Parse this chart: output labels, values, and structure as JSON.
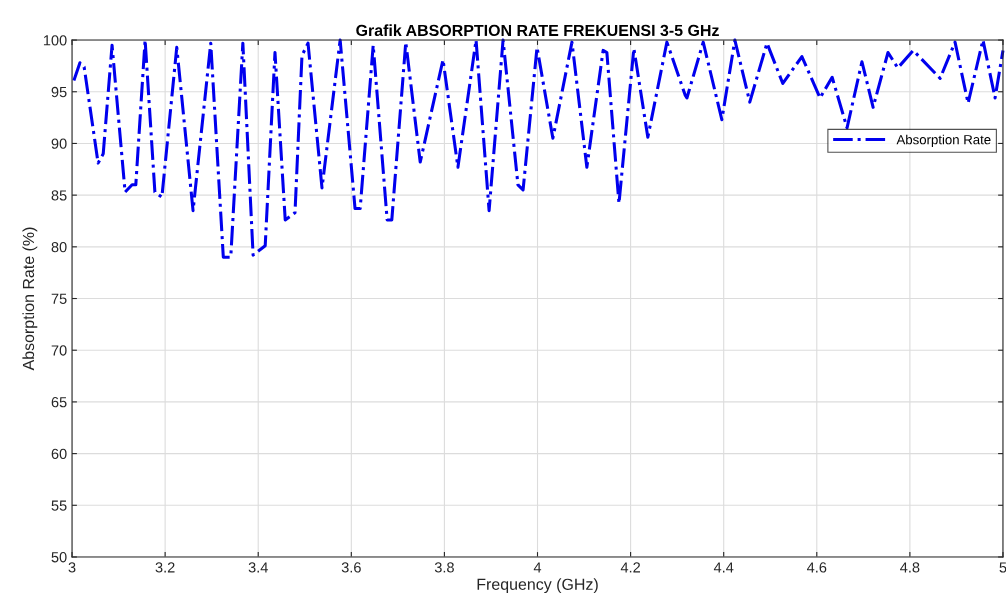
{
  "chart_data": {
    "type": "line",
    "title": "Grafik ABSORPTION RATE FREKUENSI 3-5 GHz",
    "xlabel": "Frequency (GHz)",
    "ylabel": "Absorption Rate (%)",
    "xlim": [
      3,
      5
    ],
    "ylim": [
      50,
      100
    ],
    "xticks": [
      3,
      3.2,
      3.4,
      3.6,
      3.8,
      4,
      4.2,
      4.4,
      4.6,
      4.8,
      5
    ],
    "yticks": [
      50,
      55,
      60,
      65,
      70,
      75,
      80,
      85,
      90,
      95,
      100
    ],
    "grid": true,
    "legend": "top right",
    "line_style": "dashdot",
    "marker": "none",
    "series": [
      {
        "name": "Absorption Rate",
        "color": "#0000ee",
        "x": [
          3.004,
          3.017,
          3.026,
          3.056,
          3.067,
          3.086,
          3.114,
          3.129,
          3.137,
          3.157,
          3.178,
          3.193,
          3.225,
          3.26,
          3.298,
          3.325,
          3.341,
          3.367,
          3.389,
          3.415,
          3.436,
          3.458,
          3.479,
          3.494,
          3.507,
          3.537,
          3.576,
          3.608,
          3.619,
          3.647,
          3.677,
          3.687,
          3.717,
          3.748,
          3.797,
          3.829,
          3.868,
          3.896,
          3.926,
          3.958,
          3.969,
          3.999,
          4.033,
          4.074,
          4.106,
          4.141,
          4.149,
          4.175,
          4.207,
          4.237,
          4.278,
          4.317,
          4.321,
          4.356,
          4.396,
          4.424,
          4.456,
          4.493,
          4.527,
          4.568,
          4.607,
          4.633,
          4.665,
          4.697,
          4.721,
          4.753,
          4.774,
          4.807,
          4.865,
          4.897,
          4.925,
          4.957,
          4.983,
          5.0
        ],
        "values": [
          96.1,
          97.8,
          97.4,
          88.1,
          89,
          99.5,
          85.3,
          86,
          86,
          100,
          85.3,
          84.8,
          99.3,
          83.5,
          99.7,
          79,
          79,
          99.7,
          79.2,
          80.1,
          98.8,
          82.6,
          83.3,
          98.5,
          99.7,
          85.7,
          100,
          83.7,
          83.7,
          99.5,
          82.6,
          82.6,
          99.8,
          88.2,
          98.1,
          87.7,
          100,
          83.5,
          100,
          86,
          85.5,
          99.3,
          90.5,
          99.8,
          87.7,
          99,
          98.8,
          84.2,
          99.2,
          90.6,
          99.8,
          94.7,
          94.4,
          99.8,
          92.3,
          100,
          94,
          99.7,
          95.8,
          98.4,
          94.4,
          96.4,
          91.5,
          97.9,
          93.5,
          98.8,
          97.3,
          99,
          96.3,
          99.8,
          93.9,
          100,
          94.4,
          99
        ]
      }
    ]
  }
}
